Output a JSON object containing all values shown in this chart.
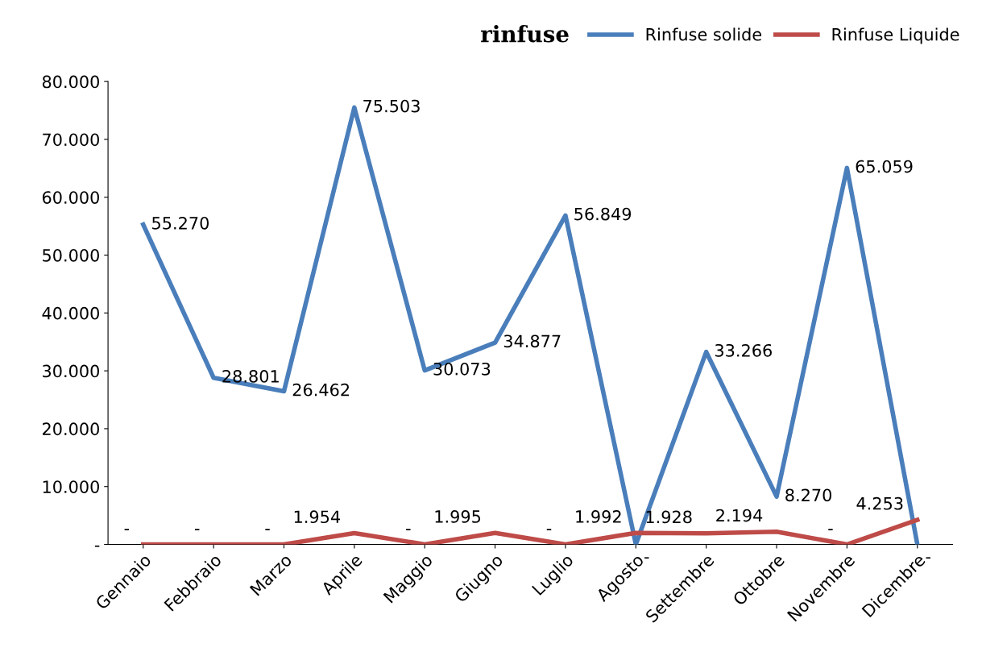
{
  "chart_data": {
    "type": "line",
    "title": "rinfuse",
    "categories": [
      "Gennaio",
      "Febbraio",
      "Marzo",
      "Aprile",
      "Maggio",
      "Giugno",
      "Luglio",
      "Agosto",
      "Settembre",
      "Ottobre",
      "Novembre",
      "Dicembre"
    ],
    "series": [
      {
        "name": "Rinfuse solide",
        "color": "#4a7ebb",
        "values": [
          55270,
          28801,
          26462,
          75503,
          30073,
          34877,
          56849,
          0,
          33266,
          8270,
          65059,
          0
        ],
        "value_labels": [
          "55.270",
          "28.801",
          "26.462",
          "75.503",
          "30.073",
          "34.877",
          "56.849",
          "-",
          "33.266",
          "8.270",
          "65.059",
          "-"
        ]
      },
      {
        "name": "Rinfuse Liquide",
        "color": "#be4b48",
        "values": [
          0,
          0,
          0,
          1954,
          0,
          1995,
          0,
          1992,
          1928,
          2194,
          0,
          4253
        ],
        "value_labels": [
          "-",
          "-",
          "-",
          "1.954",
          "-",
          "1.995",
          "-",
          "1.992",
          "1.928",
          "2.194",
          "-",
          "4.253"
        ]
      }
    ],
    "ylim": [
      0,
      80000
    ],
    "yticks": [
      {
        "value": 0,
        "label": "-"
      },
      {
        "value": 10000,
        "label": "10.000"
      },
      {
        "value": 20000,
        "label": "20.000"
      },
      {
        "value": 30000,
        "label": "30.000"
      },
      {
        "value": 40000,
        "label": "40.000"
      },
      {
        "value": 50000,
        "label": "50.000"
      },
      {
        "value": 60000,
        "label": "60.000"
      },
      {
        "value": 70000,
        "label": "70.000"
      },
      {
        "value": 80000,
        "label": "80.000"
      }
    ],
    "grid": false,
    "legend": "top right",
    "marker": "none",
    "line_style": "solid"
  }
}
